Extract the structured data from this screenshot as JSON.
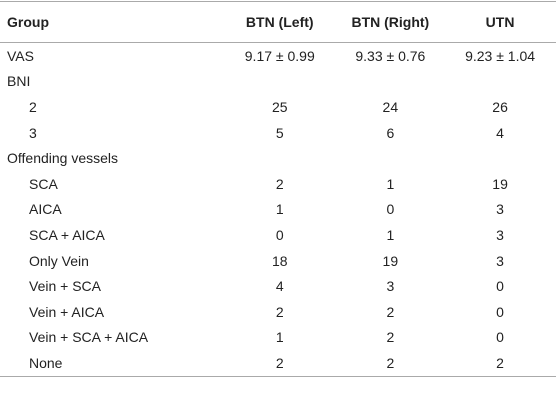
{
  "table": {
    "header": [
      "Group",
      "BTN (Left)",
      "BTN (Right)",
      "UTN"
    ],
    "rows": [
      [
        "VAS",
        "9.17 ± 0.99",
        "9.33 ± 0.76",
        "9.23 ± 1.04"
      ],
      {
        "label": "BNI",
        "rows": [
          [
            "2",
            25,
            24,
            26
          ],
          [
            "3",
            5,
            6,
            4
          ]
        ]
      },
      {
        "label": "Offending vessels",
        "rows": [
          [
            "SCA",
            2,
            1,
            19
          ],
          [
            "AICA",
            1,
            0,
            3
          ],
          [
            "SCA + AICA",
            0,
            1,
            3
          ],
          [
            "Only Vein",
            18,
            19,
            3
          ],
          [
            "Vein + SCA",
            4,
            3,
            0
          ],
          [
            "Vein + AICA",
            2,
            2,
            0
          ],
          [
            "Vein + SCA + AICA",
            1,
            2,
            0
          ],
          [
            "None",
            2,
            2,
            2
          ]
        ]
      }
    ]
  }
}
